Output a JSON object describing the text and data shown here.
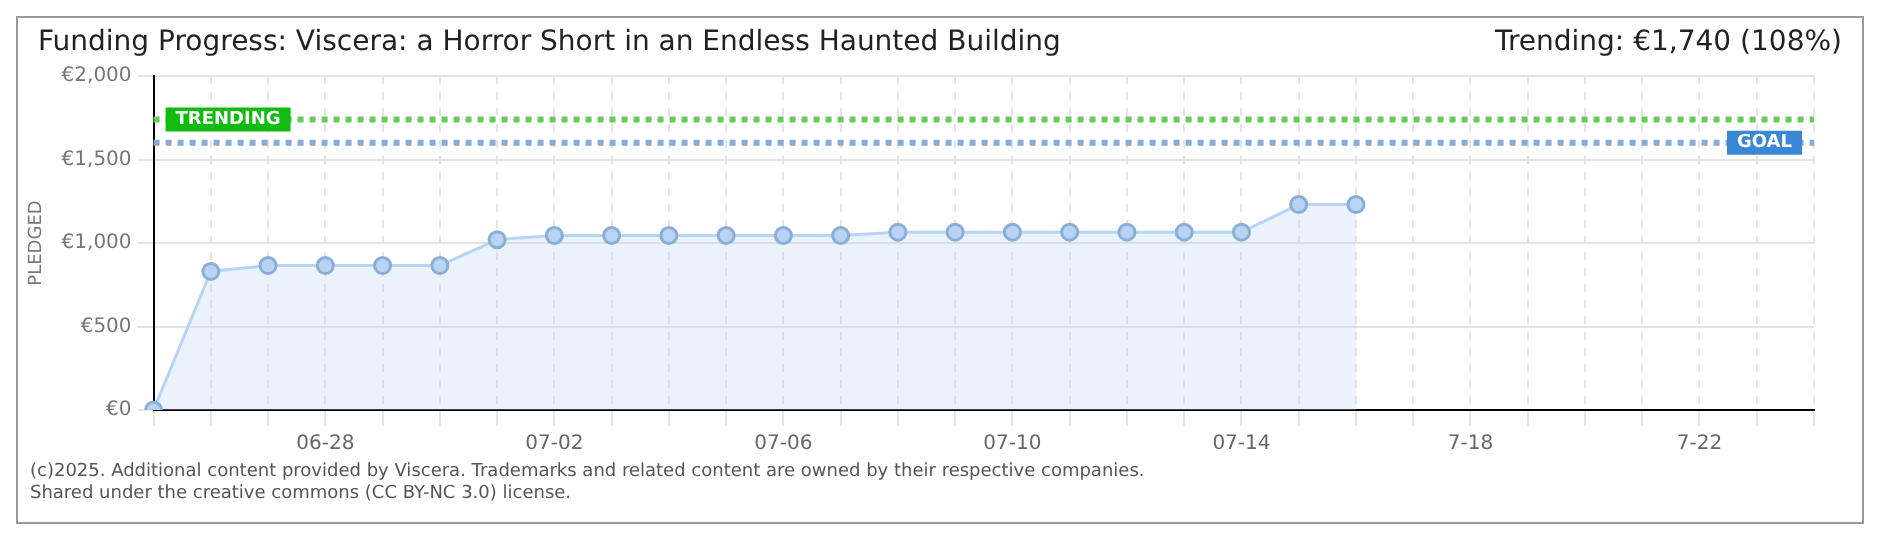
{
  "chart_data": {
    "type": "area",
    "title": "Funding Progress: Viscera: a Horror Short in an Endless Haunted Building",
    "subtitle": "Trending:  €1,740 (108%)",
    "ylabel": "PLEDGED",
    "categories": [
      null,
      null,
      null,
      "06-28",
      null,
      null,
      null,
      "07-02",
      null,
      null,
      null,
      "07-06",
      null,
      null,
      null,
      "07-10",
      null,
      null,
      null,
      "07-14",
      null,
      null,
      null,
      "7-18",
      null,
      null,
      null,
      "7-22",
      null,
      null
    ],
    "series": [
      {
        "color": "#b8d4f2",
        "values": [
          0,
          830,
          865,
          865,
          865,
          865,
          1020,
          1045,
          1045,
          1045,
          1045,
          1045,
          1045,
          1065,
          1065,
          1065,
          1065,
          1065,
          1065,
          1065,
          1230,
          1230,
          null,
          null,
          null,
          null,
          null,
          null,
          null,
          null
        ]
      }
    ],
    "ylim": [
      0,
      2000
    ],
    "yticks": [
      {
        "value": 0,
        "label": "€0"
      },
      {
        "value": 500,
        "label": "€500"
      },
      {
        "value": 1000,
        "label": "€1,000"
      },
      {
        "value": 1500,
        "label": "€1,500"
      },
      {
        "value": 2000,
        "label": "€2,000"
      }
    ],
    "grid": true,
    "marker": "circle",
    "legend": false,
    "ref_lines": [
      {
        "axis": "y",
        "value": 1740,
        "label": "TRENDING",
        "color": "#66cc55",
        "line_style": "dotted"
      },
      {
        "axis": "y",
        "value": 1600,
        "label": "GOAL",
        "color": "#88aad8",
        "line_style": "dotted"
      }
    ],
    "annotations": [
      "(c)2025. Additional content provided by Viscera. Trademarks and related content are owned by their respective companies.",
      "Shared under the creative commons (CC BY-NC 3.0) license."
    ]
  }
}
